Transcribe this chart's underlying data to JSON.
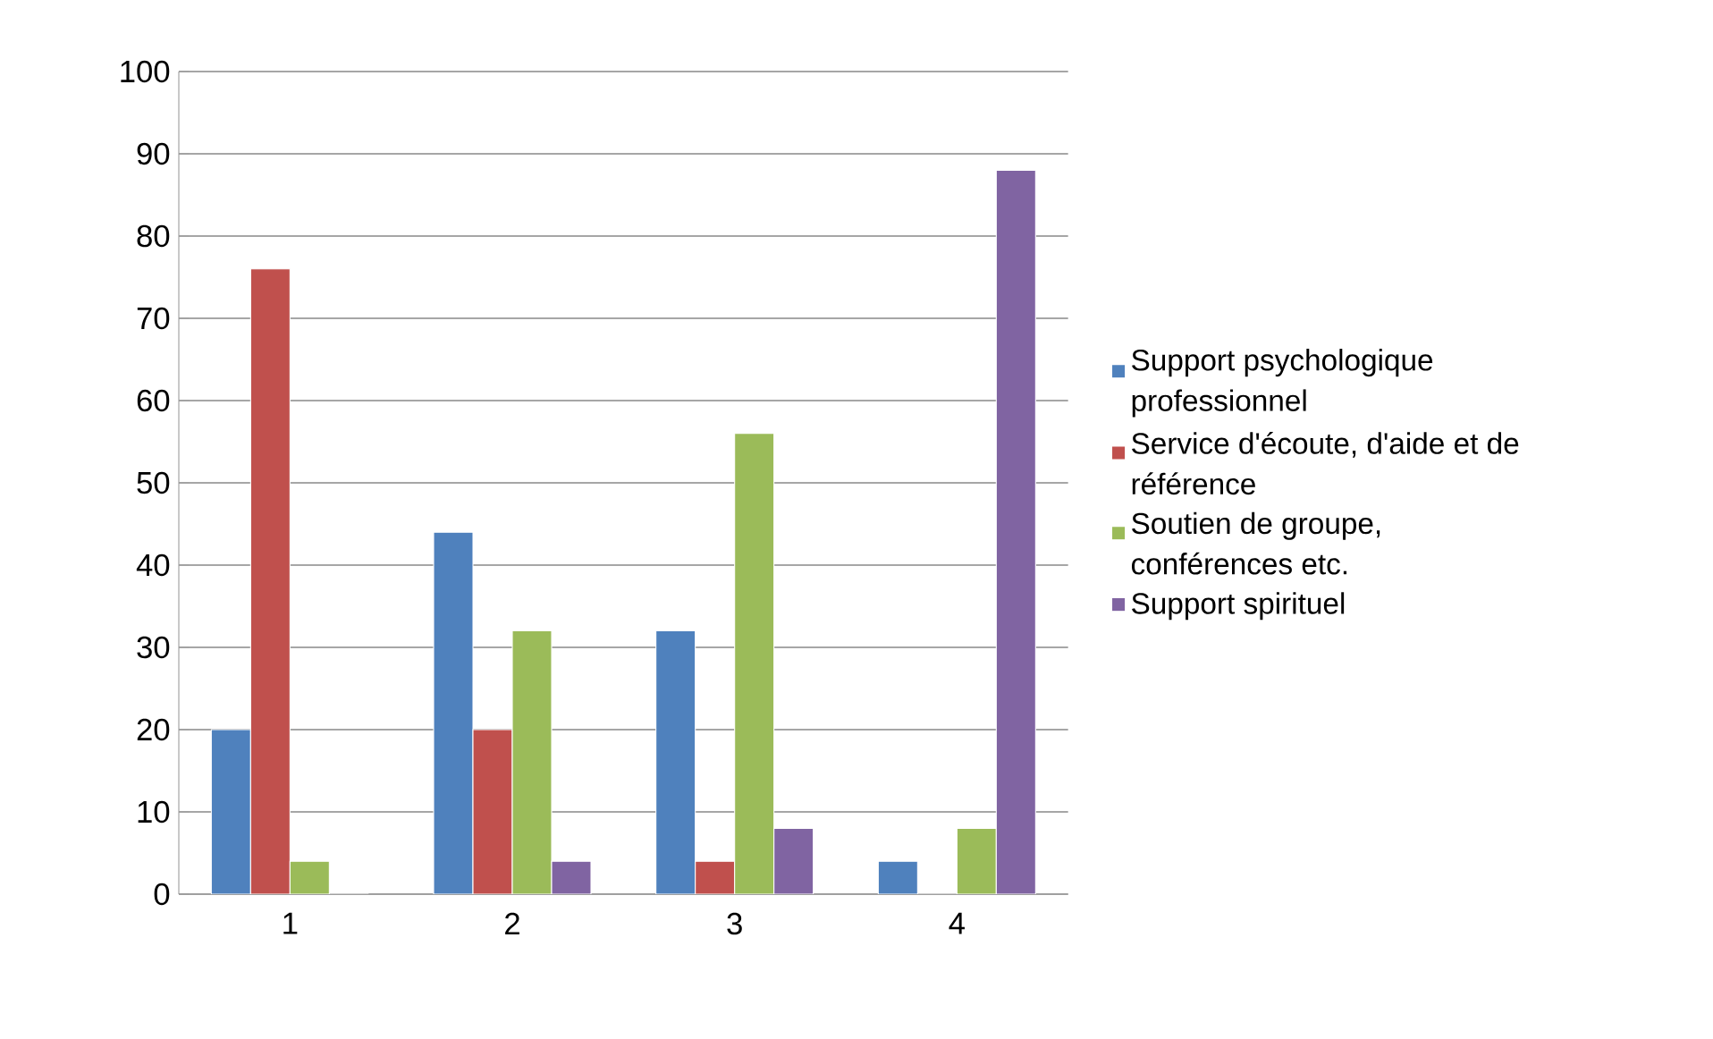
{
  "chart_data": {
    "type": "bar",
    "categories": [
      "1",
      "2",
      "3",
      "4"
    ],
    "series": [
      {
        "name": "Support psychologique professionnel",
        "color": "#4f81bd",
        "values": [
          20,
          44,
          32,
          4
        ]
      },
      {
        "name": "Service d'écoute, d'aide et de référence",
        "color": "#c0504d",
        "values": [
          76,
          20,
          4,
          0
        ]
      },
      {
        "name": "Soutien de groupe, conférences etc.",
        "color": "#9bbb59",
        "values": [
          4,
          32,
          56,
          8
        ]
      },
      {
        "name": "Support spirituel",
        "color": "#8064a2",
        "values": [
          0,
          4,
          8,
          88
        ]
      }
    ],
    "ylim": [
      0,
      100
    ],
    "yticks": [
      0,
      10,
      20,
      30,
      40,
      50,
      60,
      70,
      80,
      90,
      100
    ],
    "grid": "y",
    "legend": "right"
  }
}
